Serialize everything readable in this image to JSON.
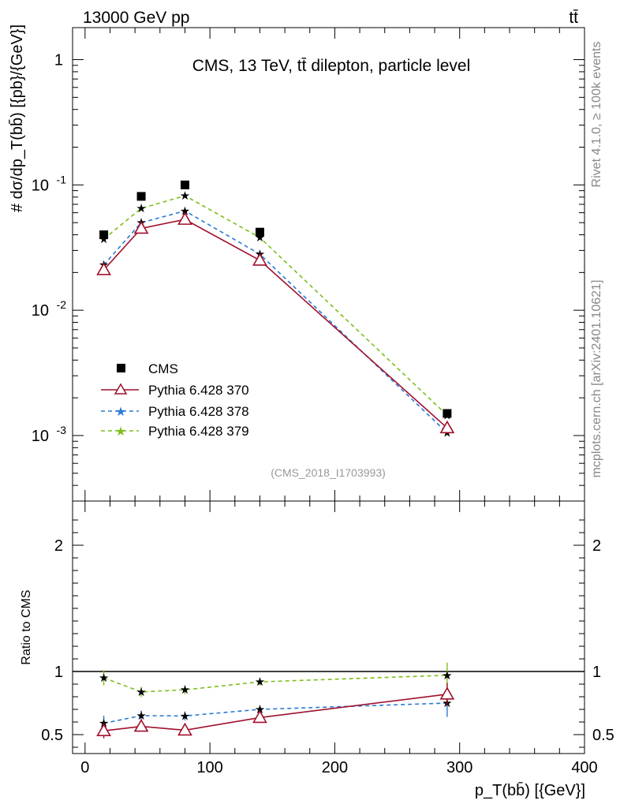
{
  "header": {
    "left": "13000 GeV pp",
    "right": "tt̄"
  },
  "side_labels": {
    "rivet": "Rivet 4.1.0, ≥ 100k events",
    "mcplots": "mcplots.cern.ch [arXiv:2401.10621]"
  },
  "chart_data": [
    {
      "type": "line",
      "scale": "log",
      "title": "CMS, 13 TeV, tt̄ dilepton, particle level",
      "watermark": "(CMS_2018_I1703993)",
      "ylabel": "# dσ/dp_T(bb̄) [{pb}/{GeV}]",
      "ylim": [
        0.0003,
        1.8
      ],
      "yticks": [
        {
          "value": 1,
          "label": "1"
        },
        {
          "value": 0.1,
          "label": "10^-1"
        },
        {
          "value": 0.01,
          "label": "10^-2"
        },
        {
          "value": 0.001,
          "label": "10^-3"
        }
      ],
      "x": [
        15,
        45,
        80,
        140,
        290
      ],
      "series": [
        {
          "name": "CMS",
          "color": "#000000",
          "style": "square",
          "values": [
            0.04,
            0.081,
            0.1,
            0.042,
            0.0015
          ]
        },
        {
          "name": "Pythia 6.428 370",
          "color": "#a0102c",
          "style": "triangle",
          "values": [
            0.021,
            0.045,
            0.053,
            0.025,
            0.00115
          ]
        },
        {
          "name": "Pythia 6.428 378",
          "color": "#2a7ad6",
          "style": "star-dash",
          "values": [
            0.023,
            0.05,
            0.062,
            0.028,
            0.00105
          ]
        },
        {
          "name": "Pythia 6.428 379",
          "color": "#7dbe1a",
          "style": "star-dash",
          "values": [
            0.037,
            0.065,
            0.082,
            0.038,
            0.00145
          ]
        }
      ]
    },
    {
      "type": "line",
      "ylabel": "Ratio to CMS",
      "xlabel": "p_T(bb̄) [{GeV}]",
      "xlim": [
        -10,
        400
      ],
      "xticks": [
        0,
        100,
        200,
        300,
        400
      ],
      "ylim": [
        0.35,
        2.35
      ],
      "yticks": [
        0.5,
        1,
        2
      ],
      "x": [
        15,
        45,
        80,
        140,
        290
      ],
      "series": [
        {
          "name": "Pythia 6.428 370",
          "color": "#a0102c",
          "values": [
            0.53,
            0.565,
            0.535,
            0.635,
            0.82
          ],
          "errors": [
            0.06,
            0.04,
            0.035,
            0.03,
            0.09
          ]
        },
        {
          "name": "Pythia 6.428 378",
          "color": "#2a7ad6",
          "values": [
            0.59,
            0.65,
            0.648,
            0.7,
            0.75
          ],
          "errors": [
            0.06,
            0.04,
            0.035,
            0.03,
            0.11
          ]
        },
        {
          "name": "Pythia 6.428 379",
          "color": "#7dbe1a",
          "values": [
            0.95,
            0.838,
            0.855,
            0.918,
            0.97
          ],
          "errors": [
            0.06,
            0.04,
            0.035,
            0.03,
            0.1
          ]
        }
      ]
    }
  ]
}
